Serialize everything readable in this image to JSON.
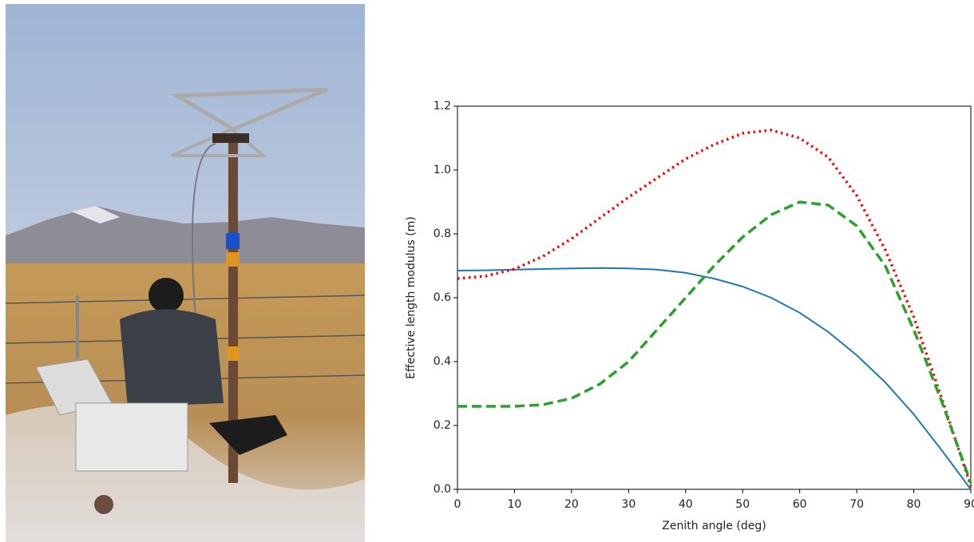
{
  "chart_data": {
    "type": "line",
    "xlabel": "Zenith angle (deg)",
    "ylabel": "Effective length modulus (m)",
    "x": [
      0,
      5,
      10,
      15,
      20,
      25,
      30,
      35,
      40,
      45,
      50,
      55,
      60,
      65,
      70,
      75,
      80,
      85,
      90
    ],
    "series": [
      {
        "color": "#1f77b4",
        "style": "solid",
        "values": [
          0.685,
          0.686,
          0.688,
          0.69,
          0.692,
          0.693,
          0.692,
          0.688,
          0.678,
          0.66,
          0.635,
          0.6,
          0.553,
          0.493,
          0.42,
          0.335,
          0.235,
          0.12,
          0.0
        ]
      },
      {
        "color": "#ff0000",
        "style": "dotted",
        "values": [
          0.66,
          0.668,
          0.69,
          0.73,
          0.785,
          0.85,
          0.915,
          0.975,
          1.035,
          1.08,
          1.115,
          1.125,
          1.1,
          1.04,
          0.92,
          0.75,
          0.54,
          0.28,
          0.01
        ]
      },
      {
        "color": "#2ca02c",
        "style": "dashed",
        "values": [
          0.26,
          0.26,
          0.26,
          0.265,
          0.285,
          0.33,
          0.4,
          0.5,
          0.6,
          0.7,
          0.79,
          0.86,
          0.9,
          0.89,
          0.825,
          0.7,
          0.5,
          0.27,
          0.02
        ]
      }
    ],
    "xlim": [
      0,
      90
    ],
    "ylim": [
      0,
      1.2
    ],
    "xticks": [
      0,
      10,
      20,
      30,
      40,
      50,
      60,
      70,
      80,
      90
    ],
    "yticks": [
      {
        "value": 0,
        "label": "0.0"
      },
      0.2,
      0.4,
      0.6,
      0.8,
      {
        "value": 1,
        "label": "1.0"
      },
      1.2
    ],
    "grid": false
  }
}
